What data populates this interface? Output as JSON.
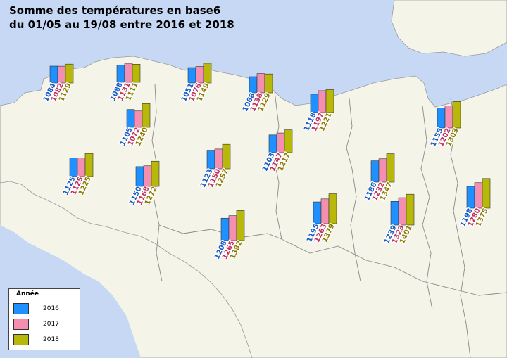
{
  "title_line1": "Somme des températures en base6",
  "title_line2": "du 01/05 au 19/08 entre 2016 et 2018",
  "legend": {
    "title": "Année",
    "labels": [
      "2016",
      "2017",
      "2018"
    ]
  },
  "colors": {
    "sea": "#c7d8f5",
    "land": "#f4f4e8",
    "border": "#8a8a8a",
    "series": [
      "#1e90ff",
      "#f58fb1",
      "#b8b80a"
    ],
    "label": [
      "#1a5bc4",
      "#c0305c",
      "#8a7a00"
    ]
  },
  "chart_data": {
    "type": "bar",
    "series": [
      {
        "name": "2016"
      },
      {
        "name": "2017"
      },
      {
        "name": "2018"
      }
    ],
    "stations": [
      {
        "values": [
          1084,
          1082,
          1129
        ]
      },
      {
        "values": [
          1088,
          1131,
          1111
        ]
      },
      {
        "values": [
          1051,
          1076,
          1149
        ]
      },
      {
        "values": [
          1068,
          1138,
          1129
        ]
      },
      {
        "values": [
          1105,
          1072,
          1240
        ]
      },
      {
        "values": [
          1118,
          1197,
          1221
        ]
      },
      {
        "values": [
          1125,
          1125,
          1225
        ]
      },
      {
        "values": [
          1150,
          1168,
          1272
        ]
      },
      {
        "values": [
          1123,
          1150,
          1257
        ]
      },
      {
        "values": [
          1103,
          1147,
          1217
        ]
      },
      {
        "values": [
          1186,
          1232,
          1347
        ]
      },
      {
        "values": [
          1155,
          1202,
          1303
        ]
      },
      {
        "values": [
          1198,
          1280,
          1375
        ]
      },
      {
        "values": [
          1208,
          1265,
          1382
        ]
      },
      {
        "values": [
          1195,
          1263,
          1379
        ]
      },
      {
        "values": [
          1239,
          1323,
          1401
        ]
      }
    ]
  }
}
